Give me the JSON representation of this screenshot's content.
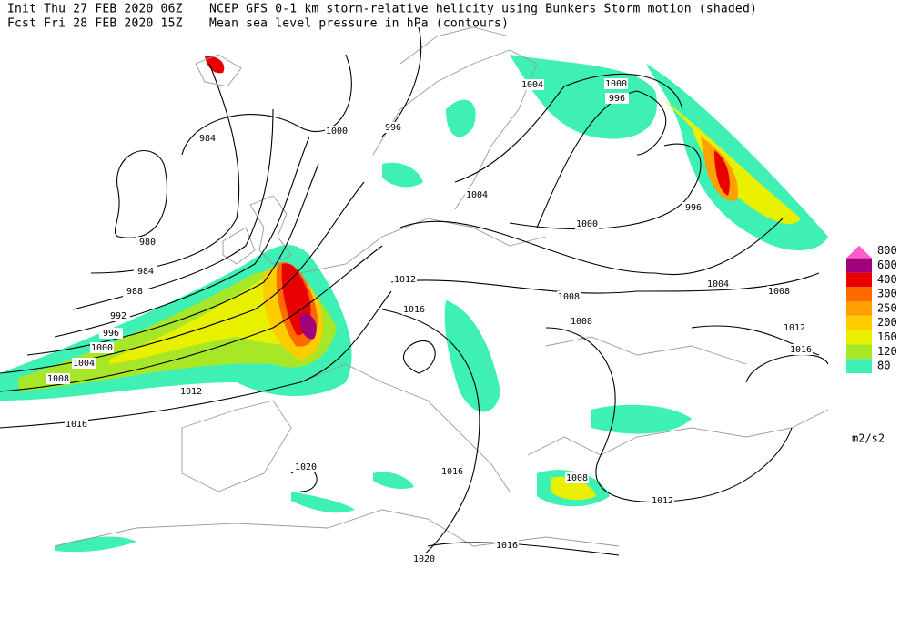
{
  "header": {
    "init": "Init  Thu 27 FEB 2020 06Z",
    "forecast": "Fcst Fri 28 FEB 2020 15Z",
    "title": "NCEP GFS 0-1 km storm-relative helicity using Bunkers Storm motion (shaded)",
    "subtitle": "Mean sea level pressure in hPa (contours)"
  },
  "legend": {
    "levels": [
      80,
      120,
      160,
      200,
      250,
      300,
      400,
      600,
      800
    ],
    "colors": [
      "#3ff0b4",
      "#a8e628",
      "#e8f000",
      "#ffcc00",
      "#ffa000",
      "#ff6a00",
      "#e80000",
      "#a0007a",
      "#ff5ec8"
    ],
    "unit": "m2/s2"
  },
  "isobar_labels": [
    "984",
    "1000",
    "996",
    "1004",
    "1000",
    "996",
    "1004",
    "1000",
    "996",
    "980",
    "984",
    "988",
    "992",
    "996",
    "1000",
    "1004",
    "1008",
    "1012",
    "1016",
    "1012",
    "1016",
    "1008",
    "1008",
    "1004",
    "1008",
    "1012",
    "1016",
    "1020",
    "1016",
    "1008",
    "1012",
    "1016",
    "1020"
  ]
}
